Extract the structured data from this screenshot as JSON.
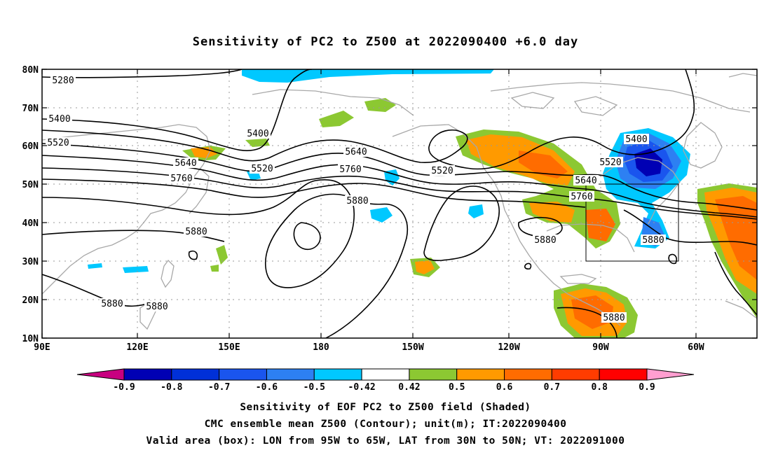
{
  "title": "Sensitivity of PC2 to Z500 at 2022090400 +6.0 day",
  "lat_labels": [
    "80N",
    "70N",
    "60N",
    "50N",
    "40N",
    "30N",
    "20N",
    "10N"
  ],
  "lon_labels": [
    "90E",
    "120E",
    "150E",
    "180",
    "150W",
    "120W",
    "90W",
    "60W"
  ],
  "contour_labels": [
    "5280",
    "5400",
    "5400",
    "5400",
    "5520",
    "5520",
    "5520",
    "5520",
    "5640",
    "5640",
    "5640",
    "5760",
    "5760",
    "5760",
    "5880",
    "5880",
    "5880",
    "5880",
    "5880",
    "5880",
    "5880"
  ],
  "colorbar": {
    "ticks": [
      "-0.9",
      "-0.8",
      "-0.7",
      "-0.6",
      "-0.5",
      "-0.42",
      "0.42",
      "0.5",
      "0.6",
      "0.7",
      "0.8",
      "0.9"
    ],
    "colors": [
      "#c80080",
      "#0000b4",
      "#0030d8",
      "#1a55ee",
      "#2d80f2",
      "#00c8ff",
      "#ffffff",
      "#8cc832",
      "#ff9a00",
      "#ff6c00",
      "#ff3c00",
      "#ff0000",
      "#ff9ed0"
    ]
  },
  "captions": [
    "Sensitivity of EOF PC2 to Z500 field (Shaded)",
    "CMC ensemble mean Z500 (Contour); unit(m); IT:2022090400",
    "Valid area (box): LON from 95W to 65W, LAT from 30N to 50N; VT: 2022091000"
  ]
}
